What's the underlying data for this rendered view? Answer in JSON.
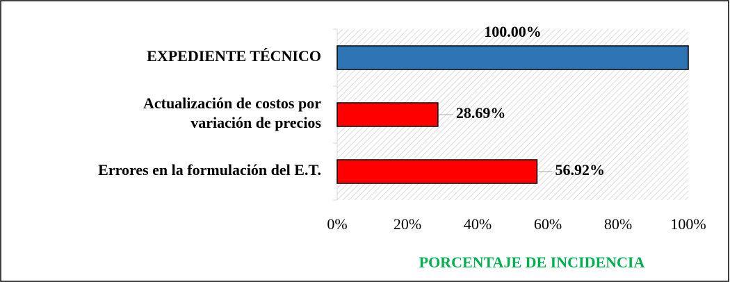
{
  "chart_data": {
    "type": "bar",
    "orientation": "horizontal",
    "categories": [
      "EXPEDIENTE TÉCNICO",
      "Actualización de costos por\nvariación de precios",
      "Errores en la formulación del E.T."
    ],
    "values": [
      100,
      28.69,
      56.92
    ],
    "value_labels": [
      "100.00%",
      "28.69%",
      "56.92%"
    ],
    "colors": [
      "#2e75b6",
      "#ff0000",
      "#ff0000"
    ],
    "xlim": [
      0,
      100
    ],
    "xticks": [
      {
        "value": 0,
        "label": "0%"
      },
      {
        "value": 20,
        "label": "20%"
      },
      {
        "value": 40,
        "label": "40%"
      },
      {
        "value": 60,
        "label": "60%"
      },
      {
        "value": 80,
        "label": "80%"
      },
      {
        "value": 100,
        "label": "100%"
      }
    ],
    "xlabel": "PORCENTAJE DE INCIDENCIA"
  }
}
